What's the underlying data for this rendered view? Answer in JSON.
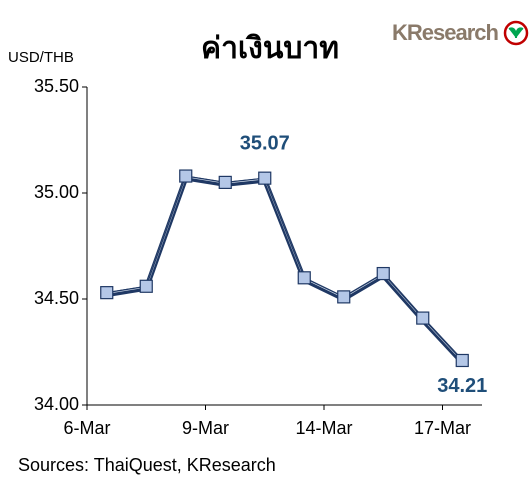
{
  "chart_data": {
    "type": "line",
    "title": "ค่าเงินบาท",
    "y_axis_label": "USD/THB",
    "logo": "KResearch",
    "source": "Sources: ThaiQuest, KResearch",
    "categories": [
      "6-Mar",
      null,
      null,
      "9-Mar",
      null,
      null,
      "14-Mar",
      null,
      null,
      "17-Mar"
    ],
    "values": [
      34.53,
      34.56,
      35.08,
      35.05,
      35.07,
      34.6,
      34.51,
      34.62,
      34.41,
      34.21
    ],
    "value_labels": [
      null,
      null,
      null,
      null,
      "35.07",
      null,
      null,
      null,
      null,
      "34.21"
    ],
    "color": "#1f3864",
    "marker_color": "#b4c7e7",
    "ylim": [
      34,
      35.5
    ],
    "yticks": [
      {
        "value": 34,
        "label": "34.00"
      },
      {
        "value": 34.5,
        "label": "34.50"
      },
      {
        "value": 35,
        "label": "35.00"
      },
      {
        "value": 35.5,
        "label": "35.50"
      }
    ]
  }
}
